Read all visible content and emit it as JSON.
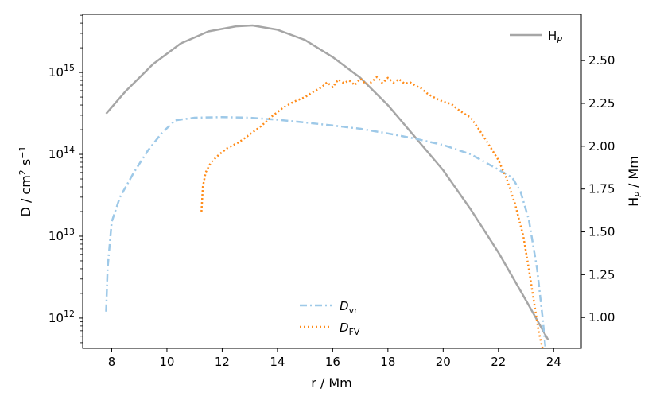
{
  "chart_data": {
    "type": "line",
    "xlabel": "r / Mm",
    "ylabel_left": "D / cm",
    "ylabel_left_units": {
      "sup1": "2",
      "mid": " s",
      "sup2": "−1"
    },
    "ylabel_right": {
      "base": "H",
      "sub": "P",
      "rest": " / Mm"
    },
    "xlim": [
      6.95,
      25.0
    ],
    "x_ticks": [
      8,
      10,
      12,
      14,
      16,
      18,
      20,
      22,
      24
    ],
    "y_left_log": true,
    "y_left_lim_log10": [
      11.63,
      15.71
    ],
    "y_left_ticks": [
      {
        "base": "10",
        "exp": "12",
        "log": 12
      },
      {
        "base": "10",
        "exp": "13",
        "log": 13
      },
      {
        "base": "10",
        "exp": "14",
        "log": 14
      },
      {
        "base": "10",
        "exp": "15",
        "log": 15
      }
    ],
    "y_right_lim": [
      0.82,
      2.77
    ],
    "y_right_ticks": [
      "1.00",
      "1.25",
      "1.50",
      "1.75",
      "2.00",
      "2.25",
      "2.50"
    ],
    "series": [
      {
        "name": "H_P",
        "axis": "right",
        "color": "#a6a6a6",
        "style": "solid",
        "x": [
          7.8,
          8.5,
          9.5,
          10.5,
          11.5,
          12.5,
          13.1,
          14.0,
          15.0,
          16.0,
          17.0,
          18.0,
          19.0,
          20.0,
          21.0,
          22.0,
          23.0,
          23.8
        ],
        "y": [
          2.19,
          2.32,
          2.48,
          2.6,
          2.67,
          2.7,
          2.705,
          2.68,
          2.62,
          2.52,
          2.4,
          2.24,
          2.05,
          1.86,
          1.63,
          1.38,
          1.1,
          0.87
        ]
      },
      {
        "name": "D_vr",
        "axis": "left",
        "color": "#9ec9e8",
        "style": "dashdot",
        "x": [
          7.8,
          7.85,
          8.0,
          8.3,
          8.8,
          9.3,
          9.8,
          10.3,
          11.0,
          12.0,
          13.0,
          14.0,
          15.0,
          16.0,
          17.0,
          18.0,
          19.0,
          20.0,
          21.0,
          22.0,
          22.5,
          22.8,
          23.1,
          23.4,
          23.6,
          23.7
        ],
        "y": [
          1200000000000.0,
          4000000000000.0,
          15000000000000.0,
          30000000000000.0,
          60000000000000.0,
          110000000000000.0,
          180000000000000.0,
          260000000000000.0,
          280000000000000.0,
          285000000000000.0,
          280000000000000.0,
          265000000000000.0,
          245000000000000.0,
          225000000000000.0,
          205000000000000.0,
          180000000000000.0,
          155000000000000.0,
          130000000000000.0,
          100000000000000.0,
          65000000000000.0,
          52000000000000.0,
          35000000000000.0,
          16000000000000.0,
          4000000000000.0,
          1000000000000.0,
          450000000000.0
        ]
      },
      {
        "name": "D_FV",
        "axis": "left",
        "color": "#ff8c1a",
        "style": "dotted",
        "x": [
          11.25,
          11.3,
          11.4,
          11.6,
          11.9,
          12.2,
          12.6,
          13.0,
          13.4,
          13.8,
          14.2,
          14.6,
          15.0,
          15.3,
          15.6,
          15.8,
          16.0,
          16.2,
          16.4,
          16.6,
          16.8,
          17.0,
          17.2,
          17.4,
          17.6,
          17.8,
          18.0,
          18.2,
          18.4,
          18.6,
          18.8,
          19.0,
          19.2,
          19.4,
          19.6,
          19.8,
          20.0,
          20.3,
          20.6,
          21.0,
          21.3,
          21.6,
          22.0,
          22.3,
          22.6,
          22.9,
          23.1,
          23.3,
          23.45,
          23.55,
          23.62
        ],
        "y": [
          20000000000000.0,
          40000000000000.0,
          60000000000000.0,
          80000000000000.0,
          100000000000000.0,
          120000000000000.0,
          140000000000000.0,
          175000000000000.0,
          220000000000000.0,
          290000000000000.0,
          370000000000000.0,
          440000000000000.0,
          500000000000000.0,
          580000000000000.0,
          660000000000000.0,
          760000000000000.0,
          660000000000000.0,
          820000000000000.0,
          740000000000000.0,
          800000000000000.0,
          700000000000000.0,
          840000000000000.0,
          720000000000000.0,
          760000000000000.0,
          880000000000000.0,
          740000000000000.0,
          860000000000000.0,
          750000000000000.0,
          830000000000000.0,
          730000000000000.0,
          760000000000000.0,
          690000000000000.0,
          640000000000000.0,
          560000000000000.0,
          510000000000000.0,
          470000000000000.0,
          440000000000000.0,
          410000000000000.0,
          340000000000000.0,
          280000000000000.0,
          200000000000000.0,
          140000000000000.0,
          85000000000000.0,
          50000000000000.0,
          25000000000000.0,
          10000000000000.0,
          4000000000000.0,
          1500000000000.0,
          700000000000.0,
          500000000000.0,
          400000000000.0
        ]
      }
    ],
    "legend_top": {
      "label_base": "H",
      "label_sub": "P",
      "placement": "top-right"
    },
    "legend_bottom": [
      {
        "label_base": "D",
        "label_sub": "vr"
      },
      {
        "label_base": "D",
        "label_sub": "FV"
      }
    ]
  }
}
